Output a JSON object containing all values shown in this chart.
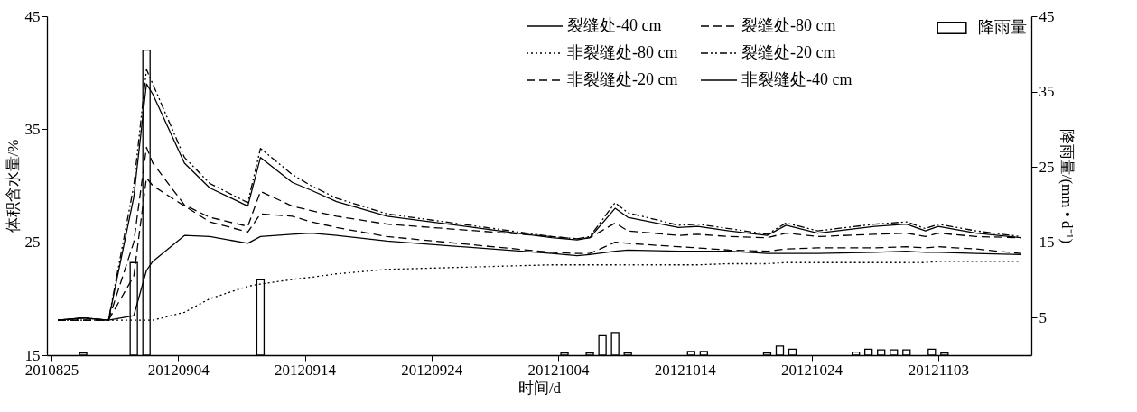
{
  "chart_data": {
    "type": "line",
    "xlabel": "时间/d",
    "ylabel": "体积含水量/%",
    "y2label": "降雨量/(mm • d⁻¹)",
    "xlim": [
      "2012-08-25",
      "2012-11-10"
    ],
    "xticks": [
      {
        "value": "2012-08-25",
        "label": "2010825"
      },
      {
        "value": "2012-09-04",
        "label": "20120904"
      },
      {
        "value": "2012-09-14",
        "label": "20120914"
      },
      {
        "value": "2012-09-24",
        "label": "20120924"
      },
      {
        "value": "2012-10-04",
        "label": "20121004"
      },
      {
        "value": "2012-10-14",
        "label": "20121014"
      },
      {
        "value": "2012-10-24",
        "label": "20121024"
      },
      {
        "value": "2012-11-03",
        "label": "20121103"
      }
    ],
    "ylim": [
      15,
      45
    ],
    "yticks": [
      15,
      25,
      35,
      45
    ],
    "y2lim": [
      0,
      45
    ],
    "y2ticks": [
      5,
      15,
      25,
      35,
      45
    ],
    "legend": "top right",
    "x": [
      "2012-08-25T12:00",
      "2012-08-27T12:00",
      "2012-08-29T12:00",
      "2012-08-31T12:00",
      "2012-09-01T12:00",
      "2012-09-02",
      "2012-09-04T12:00",
      "2012-09-06T12:00",
      "2012-09-09T12:00",
      "2012-09-10T12:00",
      "2012-09-13",
      "2012-09-14T12:00",
      "2012-09-16T12:00",
      "2012-09-20T12:00",
      "2012-10-03T12:00",
      "2012-10-05T12:00",
      "2012-10-06T12:00",
      "2012-10-08T12:00",
      "2012-10-09T12:00",
      "2012-10-13T12:00",
      "2012-10-15",
      "2012-10-17T12:00",
      "2012-10-20T12:00",
      "2012-10-22",
      "2012-10-24T12:00",
      "2012-10-29",
      "2012-10-31T12:00",
      "2012-11-02",
      "2012-11-03",
      "2012-11-06",
      "2012-11-09T12:00"
    ],
    "series": [
      {
        "name": "裂缝处-40 cm",
        "color": "#000000",
        "line_style": "solid",
        "values": [
          18.1,
          18.3,
          18.1,
          29.0,
          39.0,
          38.1,
          32.0,
          29.8,
          28.2,
          32.5,
          30.3,
          29.6,
          28.6,
          27.3,
          25.4,
          25.2,
          25.4,
          28.0,
          27.2,
          26.3,
          26.4,
          26.0,
          25.6,
          26.5,
          25.8,
          26.4,
          26.6,
          26.0,
          26.4,
          25.8,
          25.4
        ]
      },
      {
        "name": "非裂缝处-80 cm",
        "color": "#000000",
        "line_style": "dotted",
        "values": [
          18.1,
          18.1,
          18.1,
          18.1,
          18.1,
          18.1,
          18.8,
          20.0,
          21.1,
          21.3,
          21.7,
          21.9,
          22.2,
          22.6,
          23.0,
          23.0,
          23.0,
          23.0,
          23.0,
          23.0,
          23.0,
          23.1,
          23.1,
          23.2,
          23.2,
          23.2,
          23.2,
          23.2,
          23.3,
          23.3,
          23.3
        ]
      },
      {
        "name": "非裂缝处-20 cm",
        "color": "#000000",
        "line_style": "dashed",
        "values": [
          18.1,
          18.1,
          18.1,
          22.0,
          30.7,
          30.0,
          28.2,
          26.8,
          25.9,
          27.5,
          27.3,
          26.8,
          26.3,
          25.5,
          24.1,
          24.0,
          24.0,
          25.0,
          24.9,
          24.6,
          24.5,
          24.3,
          24.2,
          24.4,
          24.5,
          24.5,
          24.6,
          24.5,
          24.6,
          24.4,
          24.0
        ]
      },
      {
        "name": "裂缝处-80 cm",
        "color": "#000000",
        "line_style": "dashed",
        "values": [
          18.1,
          18.1,
          18.1,
          25.0,
          33.4,
          32.0,
          28.3,
          27.2,
          26.4,
          29.5,
          28.2,
          27.8,
          27.3,
          26.6,
          25.5,
          25.3,
          25.4,
          26.7,
          26.0,
          25.6,
          25.7,
          25.5,
          25.4,
          25.8,
          25.5,
          25.7,
          25.8,
          25.5,
          25.8,
          25.5,
          25.4
        ]
      },
      {
        "name": "裂缝处-20 cm",
        "color": "#000000",
        "line_style": "dashdot",
        "values": [
          18.1,
          18.3,
          18.1,
          30.0,
          40.3,
          39.0,
          32.5,
          30.2,
          28.5,
          33.3,
          31.0,
          30.0,
          28.9,
          27.5,
          25.5,
          25.3,
          25.5,
          28.5,
          27.6,
          26.5,
          26.6,
          26.2,
          25.7,
          26.7,
          26.0,
          26.6,
          26.8,
          26.2,
          26.6,
          26.0,
          25.5
        ]
      },
      {
        "name": "非裂缝处-40 cm",
        "color": "#000000",
        "line_style": "solid",
        "values": [
          18.1,
          18.3,
          18.1,
          18.5,
          22.5,
          23.3,
          25.6,
          25.5,
          24.9,
          25.5,
          25.7,
          25.8,
          25.6,
          25.1,
          24.0,
          23.8,
          23.9,
          24.2,
          24.3,
          24.2,
          24.2,
          24.2,
          24.0,
          24.0,
          24.0,
          24.1,
          24.2,
          24.1,
          24.1,
          24.0,
          23.9
        ]
      },
      {
        "name": "降雨量",
        "type": "bar",
        "axis": "y2",
        "color": "#000000",
        "x": [
          "2012-08-27T12:00",
          "2012-08-31T12:00",
          "2012-09-01T12:00",
          "2012-09-10T12:00",
          "2012-10-04T12:00",
          "2012-10-06T12:00",
          "2012-10-07T12:00",
          "2012-10-08T12:00",
          "2012-10-09T12:00",
          "2012-10-14T12:00",
          "2012-10-15T12:00",
          "2012-10-20T12:00",
          "2012-10-21T12:00",
          "2012-10-22T12:00",
          "2012-10-27T12:00",
          "2012-10-28T12:00",
          "2012-10-29T12:00",
          "2012-10-30T12:00",
          "2012-10-31T12:00",
          "2012-11-02T12:00",
          "2012-11-03T12:00"
        ],
        "values": [
          0.3,
          12.3,
          40.5,
          10.0,
          0.3,
          0.3,
          2.6,
          3.0,
          0.3,
          0.5,
          0.5,
          0.3,
          1.2,
          0.8,
          0.4,
          0.8,
          0.7,
          0.7,
          0.7,
          0.8,
          0.3
        ]
      }
    ]
  }
}
